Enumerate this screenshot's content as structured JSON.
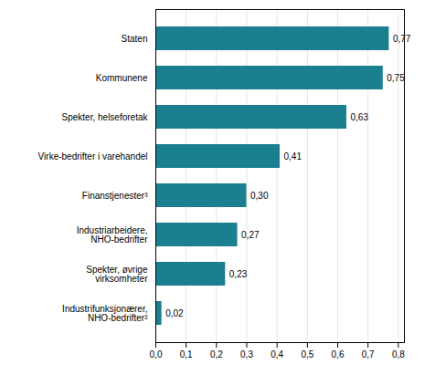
{
  "chart_data": {
    "type": "bar",
    "orientation": "horizontal",
    "categories": [
      "Staten",
      "Kommunene",
      "Spekter, helseforetak",
      "Virke-bedrifter i varehandel",
      "Finanstjenester³",
      "Industriarbeidere,\nNHO-bedrifter",
      "Spekter, øvrige\nvirksomheter",
      "Industrifunksjonærer,\nNHO-bedrifter²"
    ],
    "values": [
      0.77,
      0.75,
      0.63,
      0.41,
      0.3,
      0.27,
      0.23,
      0.02
    ],
    "value_labels": [
      "0,77",
      "0,75",
      "0,63",
      "0,41",
      "0,30",
      "0,27",
      "0,23",
      "0,02"
    ],
    "data_labels": true,
    "color": "#1a7f8e",
    "xlim": [
      0,
      0.82
    ],
    "xticks": [
      {
        "value": 0.0,
        "label": "0,0"
      },
      {
        "value": 0.1,
        "label": "0,1"
      },
      {
        "value": 0.2,
        "label": "0,2"
      },
      {
        "value": 0.3,
        "label": "0,3"
      },
      {
        "value": 0.4,
        "label": "0,4"
      },
      {
        "value": 0.5,
        "label": "0,5"
      },
      {
        "value": 0.6,
        "label": "0,6"
      },
      {
        "value": 0.7,
        "label": "0,7"
      },
      {
        "value": 0.8,
        "label": "0,8"
      }
    ],
    "grid": true
  }
}
